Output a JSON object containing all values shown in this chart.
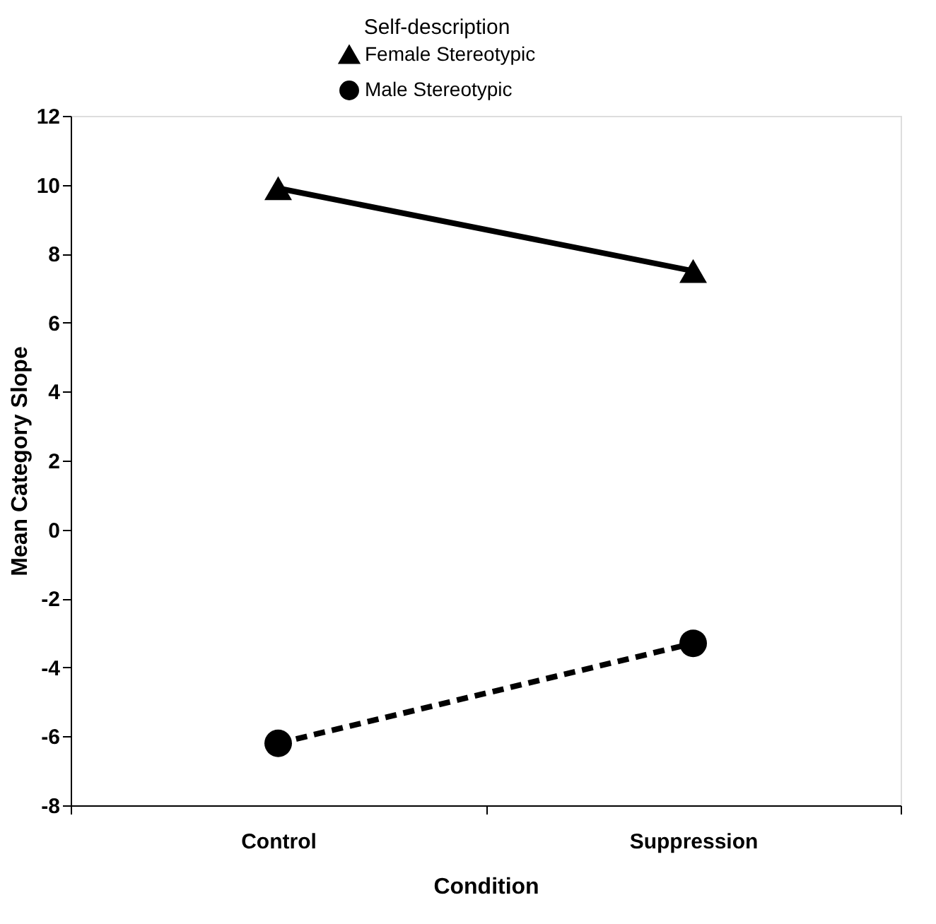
{
  "chart_data": {
    "type": "line",
    "xlabel": "Condition",
    "ylabel": "Mean Category Slope",
    "legend_title": "Self-description",
    "categories": [
      "Control",
      "Suppression"
    ],
    "series": [
      {
        "name": "Female Stereotypic",
        "color": "#000000",
        "values": [
          9.9,
          7.5
        ],
        "marker": "triangle",
        "line_style": "solid"
      },
      {
        "name": "Male Stereotypic",
        "color": "#000000",
        "values": [
          -6.2,
          -3.3
        ],
        "marker": "circle",
        "line_style": "dashed"
      }
    ],
    "ylim": [
      -8,
      12
    ],
    "yticks": [
      -8,
      -6,
      -4,
      -2,
      0,
      2,
      4,
      6,
      8,
      10,
      12
    ],
    "grid": false,
    "legend": "top"
  }
}
